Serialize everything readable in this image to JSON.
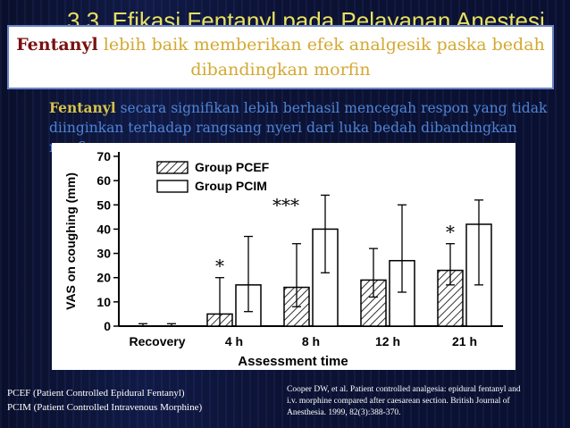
{
  "slide": {
    "background_title": "3.3. Efikasi Fentanyl pada Pelayanan Anestesi",
    "callout": {
      "keyword": "Fentanyl",
      "text": " lebih baik memberikan efek analgesik paska bedah  dibandingkan morfin"
    },
    "body": {
      "keyword": "Fentanyl",
      "text": " secara signifikan lebih berhasil mencegah respon yang tidak diinginkan terhadap rangsang nyeri dari luka bedah dibandingkan morfin"
    },
    "footnote_left": [
      "PCEF (Patient Controlled Epidural Fentanyl)",
      "PCIM (Patient Controlled Intravenous Morphine)"
    ],
    "footnote_right": [
      "Cooper DW, et al. Patient controlled analgesia: epidural fentanyl and",
      "i.v. morphine compared after caesarean section. British Journal of",
      "Anesthesia. 1999, 82(3):388-370."
    ]
  },
  "chart_data": {
    "type": "bar",
    "xlabel": "Assessment time",
    "ylabel": "VAS on coughing (mm)",
    "ylim": [
      0,
      70
    ],
    "yticks": [
      0,
      10,
      20,
      30,
      40,
      50,
      60,
      70
    ],
    "categories": [
      "Recovery",
      "4 h",
      "8 h",
      "12 h",
      "21 h"
    ],
    "series": [
      {
        "name": "Group PCEF",
        "pattern": "hatched",
        "values": [
          0,
          5,
          16,
          19,
          23
        ],
        "err_hi": [
          1,
          20,
          34,
          32,
          34
        ],
        "err_lo": [
          0,
          0,
          8,
          12,
          17
        ]
      },
      {
        "name": "Group PCIM",
        "pattern": "open",
        "values": [
          0,
          17,
          40,
          27,
          42
        ],
        "err_hi": [
          1,
          37,
          54,
          50,
          52
        ],
        "err_lo": [
          0,
          6,
          22,
          14,
          17
        ]
      }
    ],
    "annotations": [
      {
        "category": "4 h",
        "text": "*"
      },
      {
        "category": "8 h",
        "text": "***"
      },
      {
        "category": "21 h",
        "text": "*"
      }
    ],
    "legend_position": "top-left"
  }
}
